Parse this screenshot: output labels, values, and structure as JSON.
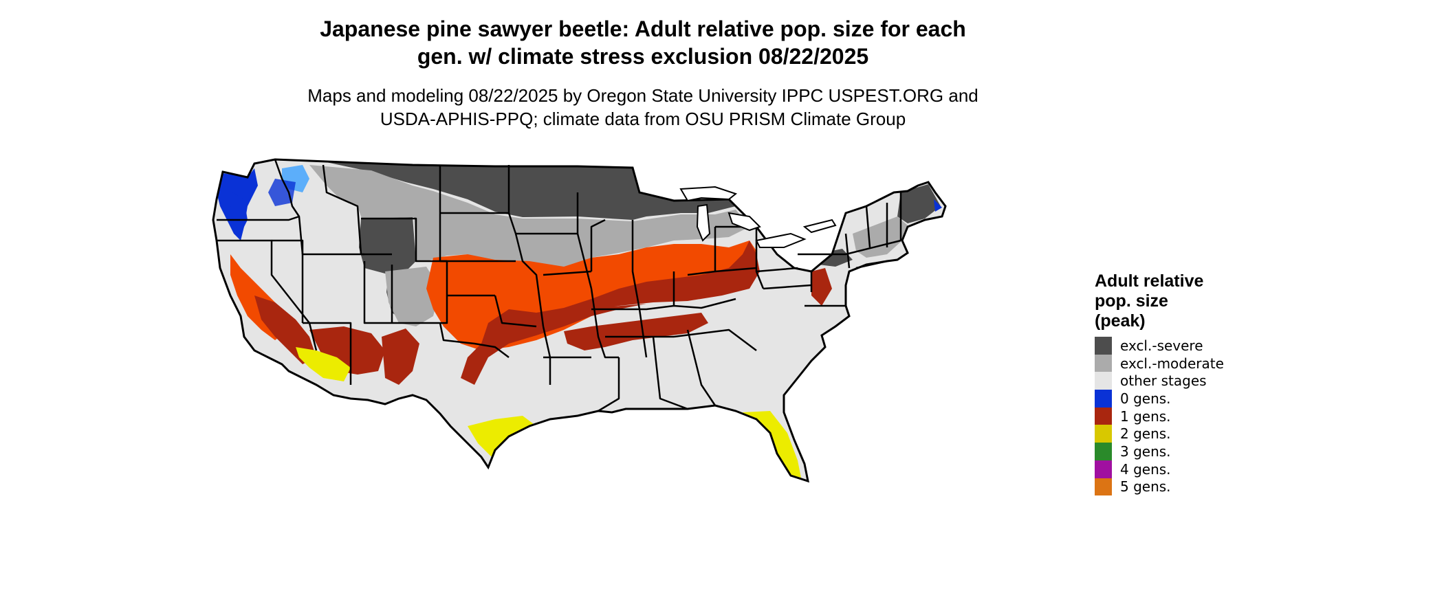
{
  "title": {
    "line1": "Japanese pine sawyer beetle: Adult relative pop. size for each",
    "line2": "gen. w/ climate stress exclusion 08/22/2025"
  },
  "subtitle": {
    "line1": "Maps and modeling 08/22/2025 by Oregon State University IPPC USPEST.ORG and",
    "line2": "USDA-APHIS-PPQ; climate data from OSU PRISM Climate Group"
  },
  "legend": {
    "title_line1": "Adult relative",
    "title_line2": "pop. size",
    "title_line3": "(peak)",
    "items": [
      {
        "label": "excl.-severe",
        "color": "#4d4d4d"
      },
      {
        "label": "excl.-moderate",
        "color": "#ababab"
      },
      {
        "label": "other stages",
        "color": "#e5e5e5"
      },
      {
        "label": "0 gens.",
        "color": "#0a32d6"
      },
      {
        "label": "1 gens.",
        "color": "#a9260f"
      },
      {
        "label": "2 gens.",
        "color": "#d8c800"
      },
      {
        "label": "3 gens.",
        "color": "#2a8a2a"
      },
      {
        "label": "4 gens.",
        "color": "#a010a0"
      },
      {
        "label": "5 gens.",
        "color": "#dc7414"
      }
    ]
  },
  "map_colors": {
    "background_land": "#e5e5e5",
    "severe": "#4d4d4d",
    "moderate": "#ababab",
    "zero_gens": "#0a32d6",
    "zero_gens_light": "#3aa0ff",
    "one_gen": "#a9260f",
    "one_gen_orange": "#f24a00",
    "two_gens": "#ecec00",
    "border": "#000000"
  }
}
